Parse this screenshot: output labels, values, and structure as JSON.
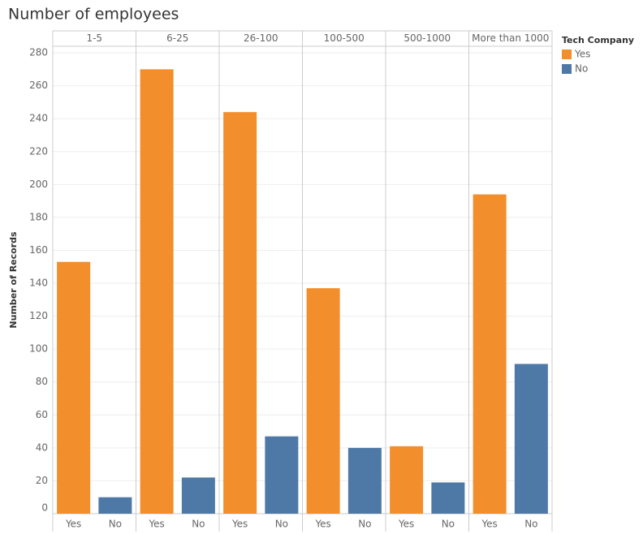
{
  "chart_data": {
    "type": "bar",
    "title": "Number of employees",
    "y_label": "Number of Records",
    "legend_title": "Tech Company",
    "categories": [
      "1-5",
      "6-25",
      "26-100",
      "100-500",
      "500-1000",
      "More than 1000"
    ],
    "series": [
      {
        "name": "Yes",
        "color": "#f28e2b",
        "values": [
          153,
          270,
          244,
          137,
          41,
          194
        ]
      },
      {
        "name": "No",
        "color": "#4e79a7",
        "values": [
          10,
          22,
          47,
          40,
          19,
          91
        ]
      }
    ],
    "ylim": [
      0,
      284
    ],
    "yticks": [
      0,
      20,
      40,
      60,
      80,
      100,
      120,
      140,
      160,
      180,
      200,
      220,
      240,
      260,
      280
    ],
    "grid": true,
    "legend": "right"
  }
}
